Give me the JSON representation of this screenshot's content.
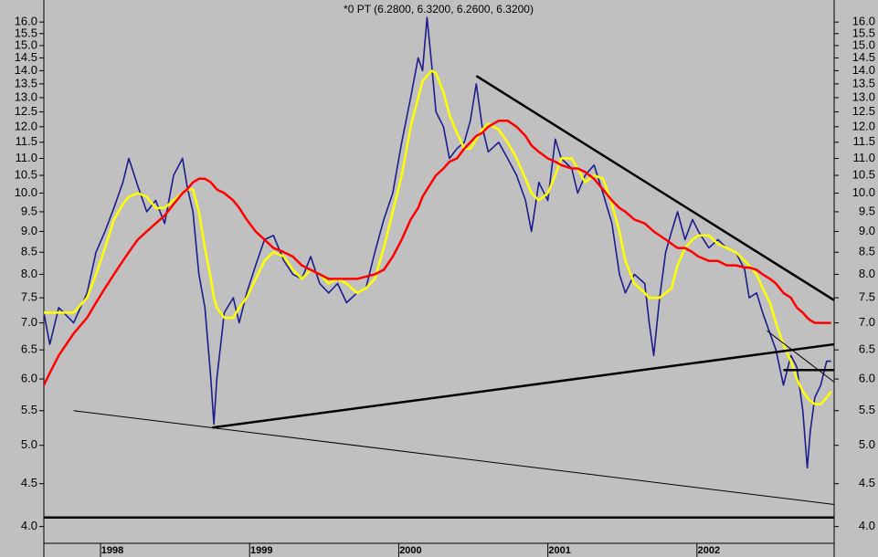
{
  "chart_data": {
    "type": "line",
    "title": "*0 PT (6.2800, 6.3200, 6.2600, 6.3200)",
    "log_scale": true,
    "grid": false,
    "xlim": [
      1997.62,
      2002.92
    ],
    "ylim": [
      3.82,
      17.0
    ],
    "xticks": [
      1998,
      1999,
      2000,
      2001,
      2002
    ],
    "yticks": [
      {
        "value": 4,
        "label": "4.0"
      },
      4.5,
      {
        "value": 5,
        "label": "5.0"
      },
      5.5,
      {
        "value": 6,
        "label": "6.0"
      },
      6.5,
      {
        "value": 7,
        "label": "7.0"
      },
      7.5,
      {
        "value": 8,
        "label": "8.0"
      },
      8.5,
      {
        "value": 9,
        "label": "9.0"
      },
      9.5,
      {
        "value": 10,
        "label": "10.0"
      },
      10.5,
      {
        "value": 11,
        "label": "11.0"
      },
      11.5,
      {
        "value": 12,
        "label": "12.0"
      },
      12.5,
      {
        "value": 13,
        "label": "13.0"
      },
      13.5,
      {
        "value": 14,
        "label": "14.0"
      },
      14.5,
      {
        "value": 15,
        "label": "15.0"
      },
      15.5,
      {
        "value": 16,
        "label": "16.0"
      }
    ],
    "x": [
      1997.62,
      1997.66,
      1997.72,
      1997.82,
      1997.91,
      1997.97,
      1998.03,
      1998.09,
      1998.15,
      1998.19,
      1998.25,
      1998.31,
      1998.37,
      1998.43,
      1998.49,
      1998.55,
      1998.58,
      1998.62,
      1998.66,
      1998.7,
      1998.74,
      1998.76,
      1998.78,
      1998.83,
      1998.89,
      1998.93,
      1998.98,
      1999.04,
      1999.1,
      1999.16,
      1999.23,
      1999.29,
      1999.35,
      1999.41,
      1999.47,
      1999.53,
      1999.59,
      1999.65,
      1999.72,
      1999.78,
      1999.84,
      1999.9,
      1999.96,
      2000.02,
      2000.08,
      2000.13,
      2000.16,
      2000.19,
      2000.22,
      2000.25,
      2000.3,
      2000.34,
      2000.39,
      2000.44,
      2000.48,
      2000.52,
      2000.56,
      2000.6,
      2000.67,
      2000.73,
      2000.79,
      2000.85,
      2000.89,
      2000.94,
      2001.0,
      2001.05,
      2001.09,
      2001.16,
      2001.2,
      2001.25,
      2001.31,
      2001.37,
      2001.43,
      2001.48,
      2001.52,
      2001.58,
      2001.65,
      2001.68,
      2001.71,
      2001.75,
      2001.79,
      2001.83,
      2001.87,
      2001.92,
      2001.97,
      2002.01,
      2002.08,
      2002.14,
      2002.2,
      2002.26,
      2002.32,
      2002.35,
      2002.4,
      2002.44,
      2002.49,
      2002.53,
      2002.58,
      2002.63,
      2002.67,
      2002.71,
      2002.74,
      2002.76,
      2002.79,
      2002.83,
      2002.87,
      2002.9
    ],
    "series": [
      {
        "color": "#1c1c8c",
        "values": [
          7.2,
          6.6,
          7.3,
          7.0,
          7.6,
          8.5,
          9.0,
          9.6,
          10.3,
          11.0,
          10.2,
          9.5,
          9.8,
          9.2,
          10.5,
          11.0,
          10.2,
          9.5,
          8.0,
          7.3,
          6.0,
          5.3,
          6.0,
          7.2,
          7.5,
          7.0,
          7.6,
          8.2,
          8.8,
          8.9,
          8.3,
          8.0,
          7.9,
          8.4,
          7.8,
          7.6,
          7.8,
          7.4,
          7.6,
          7.7,
          8.5,
          9.3,
          10.0,
          11.5,
          13.0,
          14.5,
          14.0,
          16.2,
          14.3,
          12.5,
          12.0,
          11.0,
          11.3,
          11.5,
          12.2,
          13.5,
          12.0,
          11.2,
          11.5,
          11.0,
          10.5,
          9.8,
          9.0,
          10.3,
          9.8,
          11.6,
          11.0,
          10.7,
          10.0,
          10.5,
          10.8,
          10.0,
          9.2,
          8.0,
          7.6,
          8.0,
          7.8,
          7.0,
          6.4,
          7.5,
          8.5,
          9.0,
          9.5,
          8.8,
          9.3,
          9.0,
          8.6,
          8.8,
          8.6,
          8.5,
          8.1,
          7.5,
          7.6,
          7.2,
          6.8,
          6.5,
          5.9,
          6.4,
          6.2,
          5.5,
          4.7,
          5.2,
          5.7,
          5.9,
          6.3,
          6.3
        ]
      },
      {
        "color": "#ffff00",
        "values": [
          7.2,
          7.2,
          7.2,
          7.2,
          7.5,
          8.0,
          8.6,
          9.3,
          9.7,
          9.9,
          10.0,
          9.9,
          9.6,
          9.6,
          9.8,
          10.0,
          10.1,
          10.1,
          9.5,
          8.6,
          7.9,
          7.5,
          7.3,
          7.1,
          7.1,
          7.3,
          7.5,
          7.9,
          8.3,
          8.5,
          8.4,
          8.1,
          7.9,
          8.1,
          8.0,
          7.8,
          7.9,
          7.8,
          7.6,
          7.7,
          7.9,
          8.6,
          9.5,
          10.5,
          12.0,
          13.0,
          13.6,
          13.8,
          14.0,
          13.9,
          13.2,
          12.4,
          11.8,
          11.3,
          11.3,
          11.6,
          11.9,
          12.1,
          11.9,
          11.5,
          11.0,
          10.4,
          10.0,
          9.8,
          10.0,
          10.5,
          11.0,
          11.0,
          10.7,
          10.3,
          10.5,
          10.4,
          9.7,
          9.0,
          8.3,
          7.8,
          7.6,
          7.5,
          7.5,
          7.5,
          7.6,
          7.7,
          8.2,
          8.6,
          8.8,
          8.9,
          8.9,
          8.7,
          8.6,
          8.5,
          8.3,
          8.2,
          8.0,
          7.7,
          7.4,
          7.0,
          6.6,
          6.3,
          6.0,
          5.8,
          5.7,
          5.65,
          5.6,
          5.6,
          5.7,
          5.8
        ]
      },
      {
        "color": "#ff0000",
        "values": [
          5.9,
          6.1,
          6.4,
          6.8,
          7.1,
          7.4,
          7.7,
          8.0,
          8.3,
          8.5,
          8.8,
          9.0,
          9.2,
          9.4,
          9.7,
          10.0,
          10.1,
          10.3,
          10.4,
          10.4,
          10.3,
          10.2,
          10.1,
          10.0,
          9.8,
          9.6,
          9.3,
          9.0,
          8.8,
          8.6,
          8.5,
          8.4,
          8.2,
          8.1,
          8.0,
          7.9,
          7.9,
          7.9,
          7.9,
          7.95,
          8.0,
          8.1,
          8.4,
          8.8,
          9.3,
          9.6,
          9.9,
          10.1,
          10.3,
          10.5,
          10.7,
          10.9,
          11.0,
          11.3,
          11.5,
          11.7,
          11.8,
          12.0,
          12.2,
          12.2,
          12.0,
          11.7,
          11.4,
          11.2,
          11.0,
          10.9,
          10.8,
          10.7,
          10.7,
          10.6,
          10.4,
          10.1,
          9.8,
          9.6,
          9.5,
          9.3,
          9.2,
          9.1,
          9.0,
          8.9,
          8.8,
          8.7,
          8.6,
          8.6,
          8.5,
          8.4,
          8.3,
          8.3,
          8.2,
          8.2,
          8.15,
          8.15,
          8.1,
          8.0,
          7.9,
          7.8,
          7.6,
          7.5,
          7.3,
          7.2,
          7.1,
          7.05,
          7.0,
          7.0,
          7.0,
          7.0
        ]
      }
    ],
    "trendlines": [
      {
        "style": "thick",
        "x": [
          2000.52,
          2002.92
        ],
        "y": [
          13.8,
          7.45
        ]
      },
      {
        "style": "thick",
        "x": [
          1998.75,
          2002.92
        ],
        "y": [
          5.25,
          6.6
        ]
      },
      {
        "style": "thin",
        "x": [
          1997.82,
          2002.92
        ],
        "y": [
          5.5,
          4.25
        ]
      },
      {
        "style": "thick",
        "x": [
          1997.62,
          2002.92
        ],
        "y": [
          4.1,
          4.1
        ]
      },
      {
        "style": "thin",
        "x": [
          2002.47,
          2002.92
        ],
        "y": [
          6.85,
          5.95
        ]
      },
      {
        "style": "thick",
        "x": [
          2002.58,
          2002.92
        ],
        "y": [
          6.15,
          6.15
        ]
      }
    ]
  }
}
